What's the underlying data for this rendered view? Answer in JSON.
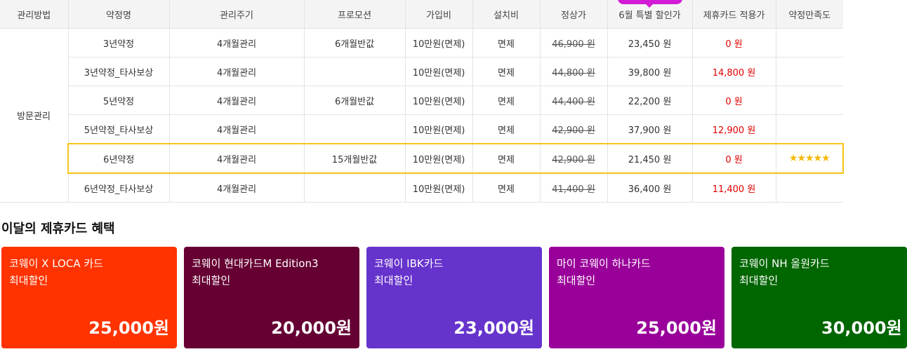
{
  "table": {
    "headers": [
      "관리방법",
      "약정명",
      "관리주기",
      "프로모션",
      "가입비",
      "설치비",
      "정상가",
      "6월 특별 할인가",
      "제휴카드 적용가",
      "약정만족도"
    ],
    "method": "방문관리",
    "rows": [
      {
        "plan": "3년약정",
        "cycle": "4개월관리",
        "promo": "6개월반값",
        "fee": "10만원(면제)",
        "install": "면제",
        "regular": "46,900 원",
        "special": "23,450 원",
        "card": "0 원",
        "rating": ""
      },
      {
        "plan": "3년약정_타사보상",
        "cycle": "4개월관리",
        "promo": "",
        "fee": "10만원(면제)",
        "install": "면제",
        "regular": "44,800 원",
        "special": "39,800 원",
        "card": "14,800 원",
        "rating": ""
      },
      {
        "plan": "5년약정",
        "cycle": "4개월관리",
        "promo": "6개월반값",
        "fee": "10만원(면제)",
        "install": "면제",
        "regular": "44,400 원",
        "special": "22,200 원",
        "card": "0 원",
        "rating": ""
      },
      {
        "plan": "5년약정_타사보상",
        "cycle": "4개월관리",
        "promo": "",
        "fee": "10만원(면제)",
        "install": "면제",
        "regular": "42,900 원",
        "special": "37,900 원",
        "card": "12,900 원",
        "rating": ""
      },
      {
        "plan": "6년약정",
        "cycle": "4개월관리",
        "promo": "15개월반값",
        "fee": "10만원(면제)",
        "install": "면제",
        "regular": "42,900 원",
        "special": "21,450 원",
        "card": "0 원",
        "rating": "★★★★★"
      },
      {
        "plan": "6년약정_타사보상",
        "cycle": "4개월관리",
        "promo": "",
        "fee": "10만원(면제)",
        "install": "면제",
        "regular": "41,400 원",
        "special": "36,400 원",
        "card": "11,400 원",
        "rating": ""
      }
    ],
    "highlight_color": "#f5c518"
  },
  "section_title": "이달의 제휴카드 혜택",
  "cards": [
    {
      "name": "코웨이 X LOCA 카드",
      "sub": "최대할인",
      "amount": "25,000원",
      "color": "#ff3300"
    },
    {
      "name": "코웨이 현대카드M Edition3",
      "sub": "최대할인",
      "amount": "20,000원",
      "color": "#660033"
    },
    {
      "name": "코웨이 IBK카드",
      "sub": "최대할인",
      "amount": "23,000원",
      "color": "#6633cc"
    },
    {
      "name": "마이 코웨이 하나카드",
      "sub": "최대할인",
      "amount": "25,000원",
      "color": "#990099"
    },
    {
      "name": "코웨이 NH 올원카드",
      "sub": "최대할인",
      "amount": "30,000원",
      "color": "#006600"
    }
  ]
}
